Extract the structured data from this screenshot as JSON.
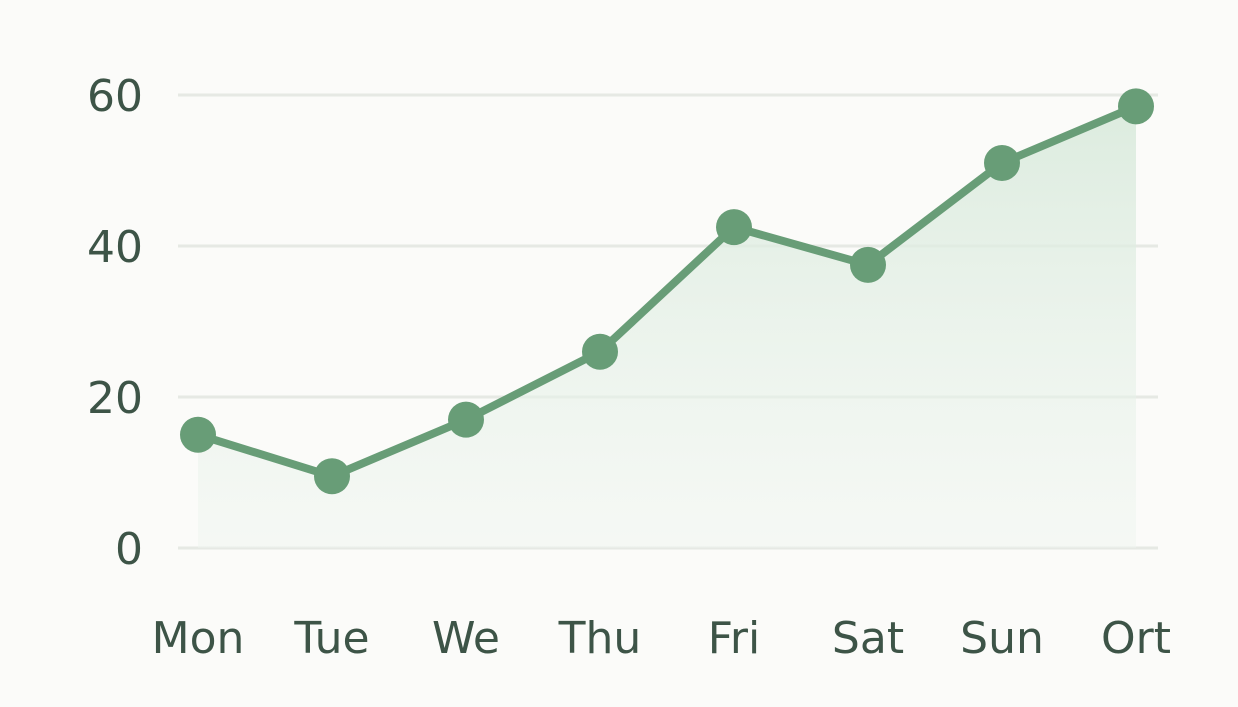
{
  "chart_data": {
    "type": "line",
    "categories": [
      "Mon",
      "Tue",
      "We",
      "Thu",
      "Fri",
      "Sat",
      "Sun",
      "Ort"
    ],
    "series": [
      {
        "values": [
          15,
          9.5,
          17,
          26,
          42.5,
          37.5,
          51,
          58.5
        ]
      }
    ],
    "ylim": [
      0,
      60
    ],
    "yticks": [
      0,
      20,
      40,
      60
    ],
    "grid": true,
    "area_fill": true,
    "colors": {
      "line": "#689d77",
      "point": "#689d77",
      "area": "#d9eadc",
      "grid": "#e6e9e4",
      "text": "#3d5447"
    }
  }
}
